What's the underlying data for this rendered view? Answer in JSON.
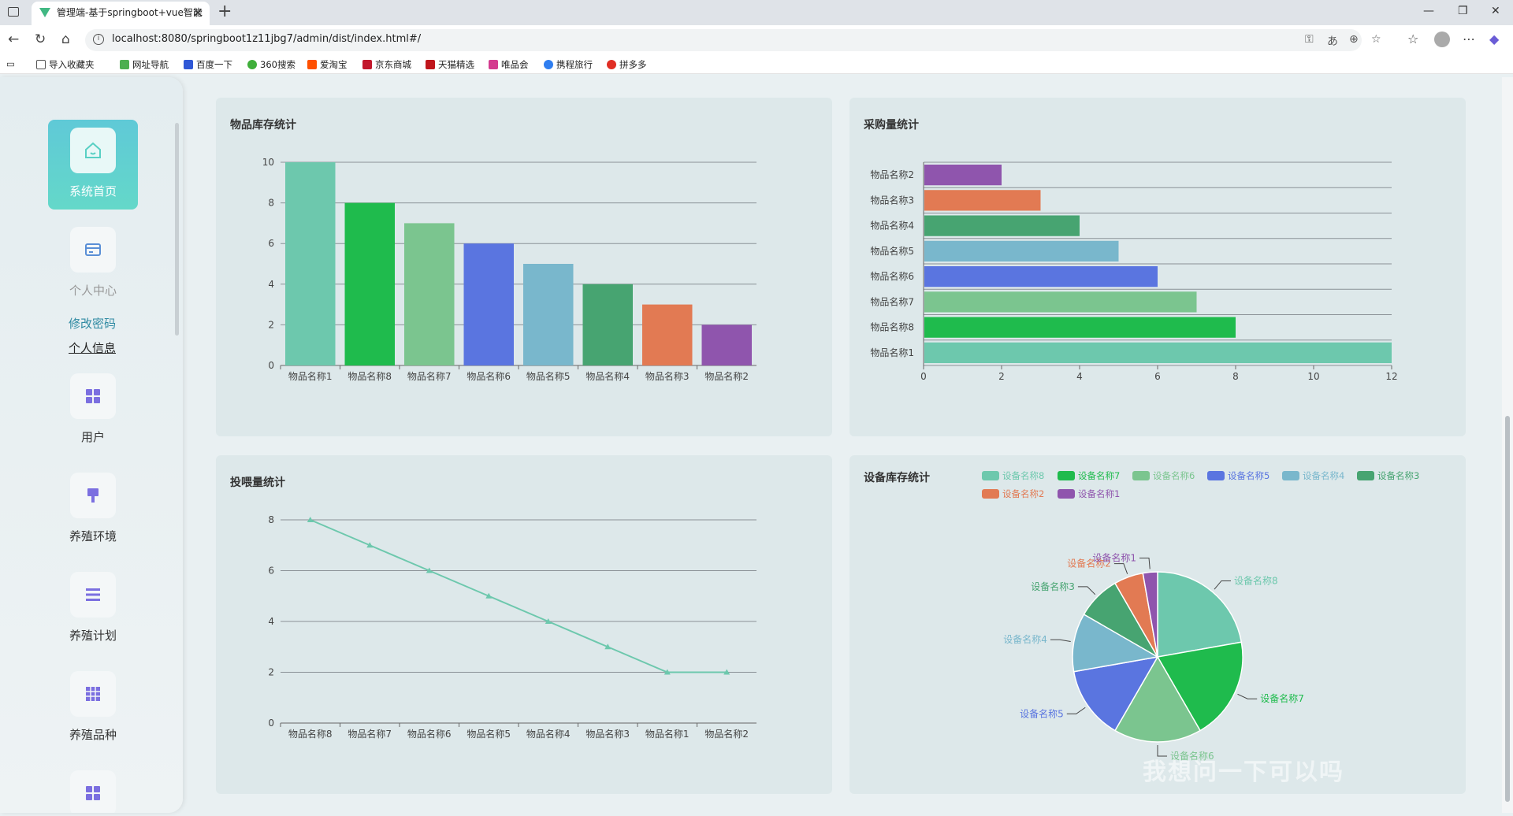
{
  "browser": {
    "tab_title": "管理端-基于springboot+vue智能",
    "url": "localhost:8080/springboot1z11jbg7/admin/dist/index.html#/",
    "bookmarks": [
      "导入收藏夹",
      "网址导航",
      "百度一下",
      "360搜索",
      "爱淘宝",
      "京东商城",
      "天猫精选",
      "唯品会",
      "携程旅行",
      "拼多多"
    ]
  },
  "sidebar": {
    "home": "系统首页",
    "center": "个人中心",
    "change_password": "修改密码",
    "personal_info": "个人信息",
    "user": "用户",
    "env": "养殖环境",
    "plan": "养殖计划",
    "breed": "养殖品种"
  },
  "charts": {
    "stock_title": "物品库存统计",
    "purchase_title": "采购量统计",
    "feed_title": "投喂量统计",
    "device_title": "设备库存统计"
  },
  "colors": {
    "c1": "#6dc8ad",
    "c2": "#1fbb4d",
    "c3": "#7bc58f",
    "c4": "#5a75e0",
    "c5": "#79b7cc",
    "c6": "#47a471",
    "c7": "#e27a53",
    "c8": "#8f55ad"
  },
  "chart_data": [
    {
      "id": "stock",
      "type": "bar",
      "title": "物品库存统计",
      "categories": [
        "物品名称1",
        "物品名称8",
        "物品名称7",
        "物品名称6",
        "物品名称5",
        "物品名称4",
        "物品名称3",
        "物品名称2"
      ],
      "values": [
        10,
        8,
        7,
        6,
        5,
        4,
        3,
        2
      ],
      "ylim": [
        0,
        10
      ],
      "yticks": [
        0,
        2,
        4,
        6,
        8,
        10
      ]
    },
    {
      "id": "purchase",
      "type": "bar",
      "orientation": "horizontal",
      "title": "采购量统计",
      "categories": [
        "物品名称1",
        "物品名称8",
        "物品名称7",
        "物品名称6",
        "物品名称5",
        "物品名称4",
        "物品名称3",
        "物品名称2"
      ],
      "values": [
        12,
        8,
        7,
        6,
        5,
        4,
        3,
        2
      ],
      "xlim": [
        0,
        12
      ],
      "xticks": [
        0,
        2,
        4,
        6,
        8,
        10,
        12
      ]
    },
    {
      "id": "feed",
      "type": "line",
      "title": "投喂量统计",
      "categories": [
        "物品名称8",
        "物品名称7",
        "物品名称6",
        "物品名称5",
        "物品名称4",
        "物品名称3",
        "物品名称1",
        "物品名称2"
      ],
      "values": [
        8,
        7,
        6,
        5,
        4,
        3,
        2,
        2
      ],
      "ylim": [
        0,
        8
      ],
      "yticks": [
        0,
        2,
        4,
        6,
        8
      ]
    },
    {
      "id": "device",
      "type": "pie",
      "title": "设备库存统计",
      "legend": [
        "设备名称8",
        "设备名称7",
        "设备名称6",
        "设备名称5",
        "设备名称4",
        "设备名称3",
        "设备名称2",
        "设备名称1"
      ],
      "labels": [
        "设备名称8",
        "设备名称7",
        "设备名称6",
        "设备名称5",
        "设备名称4",
        "设备名称3",
        "设备名称2",
        "设备名称1"
      ],
      "values": [
        8,
        7,
        6,
        5,
        4,
        3,
        2,
        1
      ],
      "legend_position": "top-right"
    }
  ],
  "watermark": "我想问一下可以吗"
}
